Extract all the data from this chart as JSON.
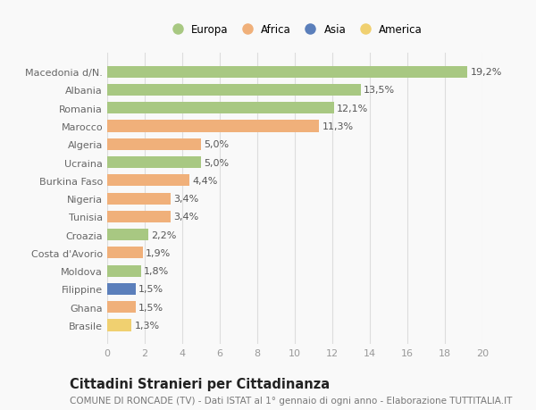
{
  "categories": [
    "Brasile",
    "Ghana",
    "Filippine",
    "Moldova",
    "Costa d'Avorio",
    "Croazia",
    "Tunisia",
    "Nigeria",
    "Burkina Faso",
    "Ucraina",
    "Algeria",
    "Marocco",
    "Romania",
    "Albania",
    "Macedonia d/N."
  ],
  "values": [
    1.3,
    1.5,
    1.5,
    1.8,
    1.9,
    2.2,
    3.4,
    3.4,
    4.4,
    5.0,
    5.0,
    11.3,
    12.1,
    13.5,
    19.2
  ],
  "continents": [
    "America",
    "Africa",
    "Asia",
    "Europa",
    "Africa",
    "Europa",
    "Africa",
    "Africa",
    "Africa",
    "Europa",
    "Africa",
    "Africa",
    "Europa",
    "Europa",
    "Europa"
  ],
  "colors": {
    "Europa": "#a8c882",
    "Africa": "#f0b07a",
    "Asia": "#5b7fbb",
    "America": "#f0d070"
  },
  "legend_order": [
    "Europa",
    "Africa",
    "Asia",
    "America"
  ],
  "xlim": [
    0,
    20
  ],
  "xticks": [
    0,
    2,
    4,
    6,
    8,
    10,
    12,
    14,
    16,
    18,
    20
  ],
  "title_main": "Cittadini Stranieri per Cittadinanza",
  "title_sub": "COMUNE DI RONCADE (TV) - Dati ISTAT al 1° gennaio di ogni anno - Elaborazione TUTTITALIA.IT",
  "background_color": "#f9f9f9",
  "grid_color": "#dddddd",
  "bar_height": 0.65,
  "label_fontsize": 8,
  "value_fontsize": 8,
  "title_fontsize": 10.5,
  "subtitle_fontsize": 7.5
}
